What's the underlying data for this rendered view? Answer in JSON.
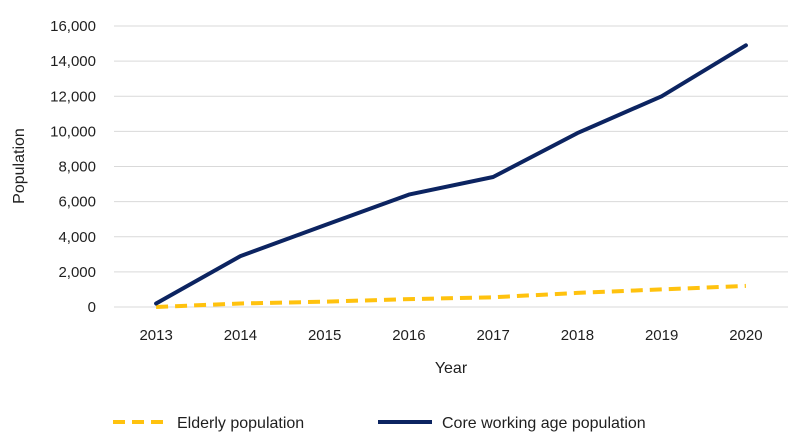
{
  "chart_data": {
    "type": "line",
    "title": "",
    "xlabel": "Year",
    "ylabel": "Population",
    "categories": [
      "2013",
      "2014",
      "2015",
      "2016",
      "2017",
      "2018",
      "2019",
      "2020"
    ],
    "ylim": [
      0,
      16000
    ],
    "yticks": [
      0,
      2000,
      4000,
      6000,
      8000,
      10000,
      12000,
      14000,
      16000
    ],
    "ytick_labels": [
      "0",
      "2,000",
      "4,000",
      "6,000",
      "8,000",
      "10,000",
      "12,000",
      "14,000",
      "16,000"
    ],
    "grid": true,
    "legend_position": "bottom",
    "series": [
      {
        "name": "Elderly population",
        "values": [
          0,
          200,
          300,
          450,
          550,
          800,
          1000,
          1200
        ],
        "color": "#FFC20E",
        "style": "dashed"
      },
      {
        "name": "Core working age population",
        "values": [
          200,
          2900,
          4650,
          6400,
          7400,
          9900,
          12000,
          14900
        ],
        "color": "#0C2461",
        "style": "solid"
      }
    ]
  }
}
